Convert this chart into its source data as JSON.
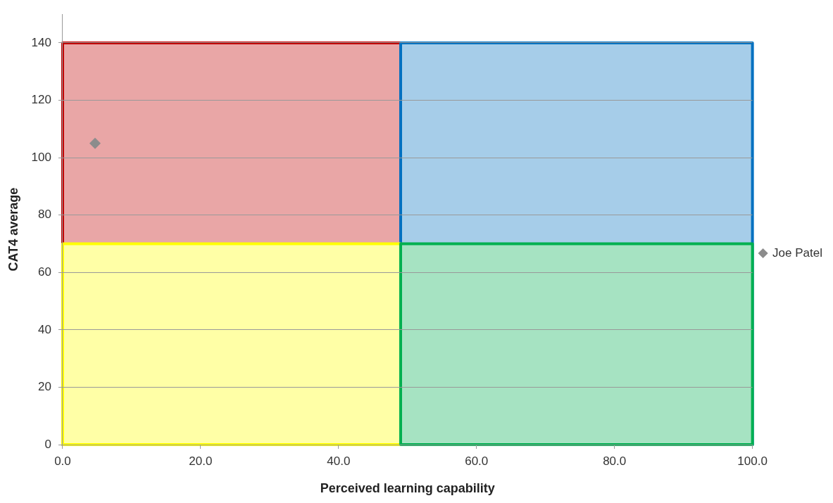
{
  "chart_data": {
    "type": "scatter",
    "xlabel": "Perceived learning capability",
    "ylabel": "CAT4 average",
    "series": [
      {
        "type": "area",
        "color": "#c00000",
        "x": [
          0,
          49
        ],
        "values": [
          140,
          140
        ]
      },
      {
        "type": "area",
        "color": "#0070c0",
        "x": [
          49,
          100
        ],
        "values": [
          140,
          140
        ]
      },
      {
        "type": "area",
        "color": "#ffff00",
        "x": [
          0,
          49
        ],
        "values": [
          70,
          70
        ]
      },
      {
        "type": "area",
        "color": "#00b050",
        "x": [
          49,
          100
        ],
        "values": [
          70,
          70
        ]
      },
      {
        "name": "Joe Patel",
        "color": "#8c8c8c",
        "x": [
          4.7
        ],
        "values": [
          105
        ],
        "marker": "diamond"
      }
    ],
    "xlim": [
      0,
      100
    ],
    "xticks": [
      {
        "value": 0,
        "label": "0.0"
      },
      {
        "value": 20,
        "label": "20.0"
      },
      {
        "value": 40,
        "label": "40.0"
      },
      {
        "value": 60,
        "label": "60.0"
      },
      {
        "value": 80,
        "label": "80.0"
      },
      {
        "value": 100,
        "label": "100.0"
      }
    ],
    "ylim": [
      0,
      150
    ],
    "yticks": [
      0,
      20,
      40,
      60,
      80,
      100,
      120,
      140
    ],
    "grid": "y",
    "legend": "right"
  }
}
